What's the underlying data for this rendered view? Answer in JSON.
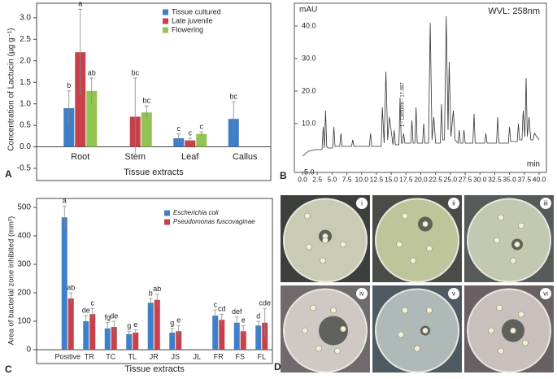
{
  "chart_data": [
    {
      "type": "bar",
      "panel_label": "A",
      "y_label": "Concentration of Lactucin (µg g⁻¹)",
      "x_label": "Tissue extracts",
      "categories": [
        "Root",
        "Stem",
        "Leaf",
        "Callus"
      ],
      "ylim": [
        -0.5,
        3.3
      ],
      "yticks": [
        -0.5,
        {
          "value": 0,
          "label": "0.0"
        },
        0.5,
        {
          "value": 1,
          "label": "1.0"
        },
        1.5,
        {
          "value": 2,
          "label": "2.0"
        },
        2.5,
        {
          "value": 3,
          "label": "3.0"
        }
      ],
      "legend": "top-right",
      "series": [
        {
          "name": "Tissue cultured",
          "color": "#3f7fc9",
          "values": [
            0.9,
            null,
            0.2,
            0.65
          ],
          "errors": [
            0.4,
            null,
            0.1,
            0.4
          ],
          "significance": [
            "b",
            null,
            "c",
            "bc"
          ]
        },
        {
          "name": "Late juvenile",
          "color": "#c8404a",
          "values": [
            2.2,
            0.7,
            0.15,
            null
          ],
          "errors": [
            1.0,
            0.9,
            0.05,
            null
          ],
          "significance": [
            "a",
            "bc",
            "c",
            null
          ]
        },
        {
          "name": "Flowering",
          "color": "#92c453",
          "values": [
            1.3,
            0.8,
            0.3,
            null
          ],
          "errors": [
            0.3,
            0.15,
            0.05,
            null
          ],
          "significance": [
            "ab",
            "bc",
            "c",
            null
          ]
        }
      ]
    },
    {
      "type": "line",
      "panel_label": "B",
      "y_label": "mAU",
      "x_label": "min",
      "wavelength_label": "WVL: 258nm",
      "annotation": "1 - Lactucin - 17.087",
      "xlim": [
        0,
        40
      ],
      "ylim": [
        -5,
        46
      ],
      "xticks": [
        {
          "value": 0,
          "label": "0.0"
        },
        2.5,
        {
          "value": 5,
          "label": "5.0"
        },
        7.5,
        {
          "value": 10,
          "label": "10.0"
        },
        12.5,
        {
          "value": 15,
          "label": "15.0"
        },
        17.5,
        {
          "value": 20,
          "label": "20.0"
        },
        22.5,
        {
          "value": 25,
          "label": "25.0"
        },
        27.5,
        {
          "value": 30,
          "label": "30.0"
        },
        32.5,
        {
          "value": 35,
          "label": "35.0"
        },
        37.5,
        {
          "value": 40,
          "label": "40.0"
        }
      ],
      "yticks": [
        {
          "value": -5,
          "label": "-5.0"
        },
        {
          "value": 10,
          "label": "10.0"
        },
        {
          "value": 20,
          "label": "20.0"
        },
        {
          "value": 30,
          "label": "30.0"
        },
        {
          "value": 40,
          "label": "40.0"
        }
      ],
      "color": "#333333",
      "x": [
        0,
        1,
        2,
        3.3,
        3.5,
        3.7,
        3.9,
        4.1,
        4.3,
        5.1,
        5.3,
        5.5,
        6.3,
        6.5,
        6.7,
        8.3,
        8.5,
        8.7,
        11.3,
        11.5,
        11.7,
        13.3,
        13.5,
        13.8,
        14.1,
        14.4,
        14.7,
        15.3,
        15.5,
        15.7,
        16.3,
        16.5,
        16.7,
        16.9,
        17.1,
        17.3,
        18.3,
        18.5,
        18.7,
        19.0,
        19.2,
        19.4,
        20.3,
        20.5,
        20.7,
        21.3,
        21.6,
        21.9,
        22.2,
        22.5,
        23.3,
        23.5,
        23.7,
        24.0,
        24.3,
        24.6,
        24.8,
        25.1,
        25.5,
        25.8,
        26.3,
        26.5,
        26.7,
        27.1,
        27.3,
        27.5,
        28.8,
        29,
        29.2,
        30.8,
        31,
        31.2,
        32.8,
        33,
        33.2,
        34.8,
        35,
        35.2,
        36.3,
        36.5,
        36.7,
        37.1,
        37.3,
        37.6,
        37.8,
        38.0,
        38.3,
        38.6,
        39,
        39.2,
        40
      ],
      "values": [
        0,
        1.5,
        2,
        2,
        9,
        2.5,
        14,
        3,
        2.5,
        2.5,
        9,
        3,
        3,
        7,
        3,
        3,
        5,
        3,
        3,
        7,
        3,
        3,
        15,
        4,
        26,
        5,
        12,
        3.5,
        8,
        3.5,
        3.5,
        18,
        4,
        4,
        7,
        4,
        4,
        11,
        4,
        4,
        15,
        4,
        4,
        10,
        4,
        4,
        41,
        5,
        12,
        4,
        4,
        16,
        5,
        5,
        43,
        8,
        29,
        6,
        14,
        5,
        4,
        8,
        4,
        4,
        8,
        4,
        4,
        13,
        4,
        4,
        7,
        4,
        4,
        12,
        4,
        4,
        9,
        4.5,
        4.5,
        10,
        5,
        5,
        14,
        6,
        24,
        6,
        12,
        5,
        5,
        7,
        5
      ]
    },
    {
      "type": "bar",
      "panel_label": "C",
      "y_label": "Area of bacterial zone inhibited (mm²)",
      "x_label": "Tissue extracts",
      "categories": [
        "Positive",
        "TR",
        "TC",
        "TL",
        "JR",
        "JS",
        "JL",
        "FR",
        "FS",
        "FL"
      ],
      "ylim": [
        0,
        520
      ],
      "yticks": [
        0,
        100,
        200,
        300,
        400,
        500
      ],
      "legend": "top-right",
      "legend_italic": true,
      "series": [
        {
          "name": "Escherichia coli",
          "color": "#3f7fc9",
          "values": [
            465,
            100,
            75,
            55,
            165,
            60,
            null,
            120,
            95,
            85
          ],
          "errors": [
            40,
            20,
            20,
            10,
            15,
            15,
            null,
            20,
            20,
            15
          ],
          "significance": [
            "a",
            "de",
            "fg",
            "g",
            "b",
            "g",
            null,
            "c",
            "def",
            "d"
          ]
        },
        {
          "name": "Pseudomonas fuscovaginae",
          "color": "#c8404a",
          "values": [
            180,
            125,
            80,
            60,
            175,
            65,
            null,
            105,
            65,
            95
          ],
          "errors": [
            20,
            20,
            20,
            10,
            20,
            20,
            null,
            20,
            20,
            50
          ],
          "significance": [
            "ab",
            "c",
            "de",
            "e",
            "ab",
            "e",
            null,
            "cd",
            "e",
            "cde"
          ]
        }
      ]
    }
  ],
  "photo_panel": {
    "panel_label": "D",
    "plates": [
      "i",
      "ii",
      "iii",
      "iv",
      "v",
      "vi"
    ]
  }
}
